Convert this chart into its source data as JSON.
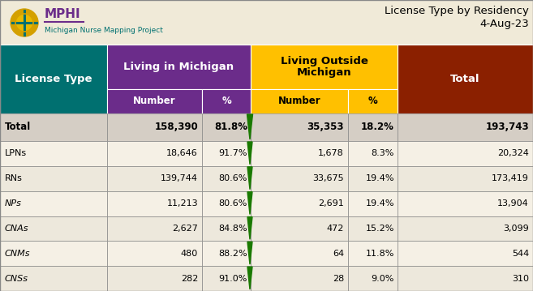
{
  "title_right": "License Type by Residency",
  "date": "4-Aug-23",
  "rows": [
    {
      "label": "Total",
      "bold": true,
      "italic": false,
      "mi_num": "158,390",
      "mi_pct": "81.8%",
      "out_num": "35,353",
      "out_pct": "18.2%",
      "total": "193,743"
    },
    {
      "label": "LPNs",
      "bold": false,
      "italic": false,
      "mi_num": "18,646",
      "mi_pct": "91.7%",
      "out_num": "1,678",
      "out_pct": "8.3%",
      "total": "20,324"
    },
    {
      "label": "RNs",
      "bold": false,
      "italic": false,
      "mi_num": "139,744",
      "mi_pct": "80.6%",
      "out_num": "33,675",
      "out_pct": "19.4%",
      "total": "173,419"
    },
    {
      "label": "NPs",
      "bold": false,
      "italic": true,
      "mi_num": "11,213",
      "mi_pct": "80.6%",
      "out_num": "2,691",
      "out_pct": "19.4%",
      "total": "13,904"
    },
    {
      "label": "CNAs",
      "bold": false,
      "italic": true,
      "mi_num": "2,627",
      "mi_pct": "84.8%",
      "out_num": "472",
      "out_pct": "15.2%",
      "total": "3,099"
    },
    {
      "label": "CNMs",
      "bold": false,
      "italic": true,
      "mi_num": "480",
      "mi_pct": "88.2%",
      "out_num": "64",
      "out_pct": "11.8%",
      "total": "544"
    },
    {
      "label": "CNSs",
      "bold": false,
      "italic": true,
      "mi_num": "282",
      "mi_pct": "91.0%",
      "out_num": "28",
      "out_pct": "9.0%",
      "total": "310"
    }
  ],
  "colors": {
    "teal": "#007070",
    "purple": "#6B2C8A",
    "gold": "#FFC000",
    "brown": "#8B2000",
    "row_light": "#F5F0E5",
    "row_alt": "#EDE8DC",
    "total_row_bg": "#D5CEC5",
    "logo_bg": "#F0EAD8",
    "green_tri": "#1A7A00",
    "border": "#888888",
    "white": "#FFFFFF",
    "black": "#000000",
    "purple_logo": "#6B2C8A",
    "teal_logo": "#007070",
    "gold_logo": "#D4A000"
  },
  "figsize": [
    6.57,
    3.59
  ],
  "dpi": 100
}
